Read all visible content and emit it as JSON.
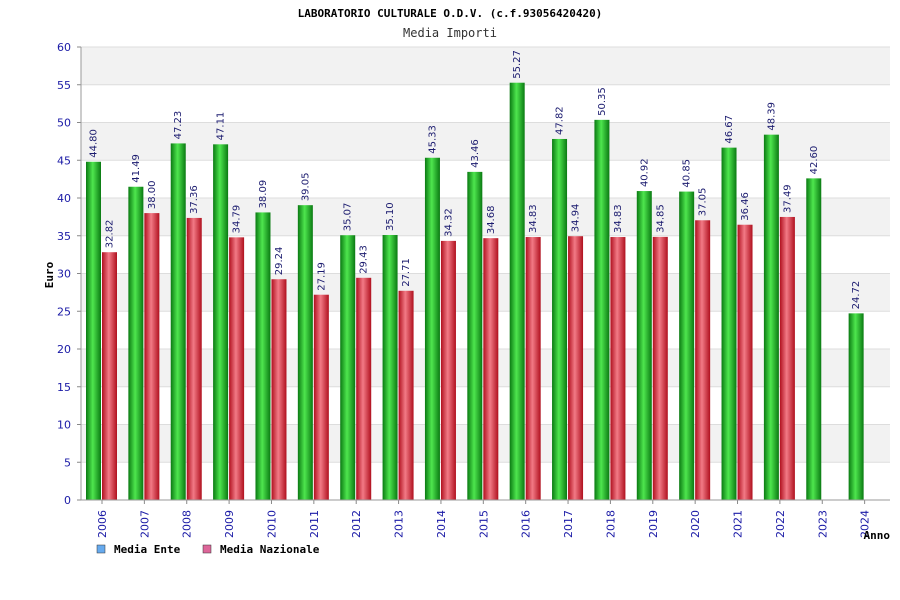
{
  "chart_data": {
    "type": "bar",
    "title": "LABORATORIO CULTURALE O.D.V. (c.f.93056420420)",
    "subtitle": "Media Importi",
    "ylabel": "Euro",
    "xlabel": "Anno",
    "ylim": [
      0,
      60
    ],
    "yticks": [
      "0",
      "5",
      "10",
      "15",
      "20",
      "25",
      "30",
      "35",
      "40",
      "45",
      "50",
      "55",
      "60"
    ],
    "grid": "horizontal, alternating bands",
    "legend_position": "bottom-left",
    "categories": [
      "2006",
      "2007",
      "2008",
      "2009",
      "2010",
      "2011",
      "2012",
      "2013",
      "2014",
      "2015",
      "2016",
      "2017",
      "2018",
      "2019",
      "2020",
      "2021",
      "2022",
      "2023",
      "2024"
    ],
    "series": [
      {
        "name": "Media Ente",
        "legend_color": "#66aaee",
        "bar_color": "#11aa22",
        "values": [
          44.8,
          41.49,
          47.23,
          47.11,
          38.09,
          39.05,
          35.07,
          35.1,
          45.33,
          43.46,
          55.27,
          47.82,
          50.35,
          40.92,
          40.85,
          46.67,
          48.39,
          42.6,
          24.72
        ],
        "labels": [
          "44.80",
          "41.49",
          "47.23",
          "47.11",
          "38.09",
          "39.05",
          "35.07",
          "35.10",
          "45.33",
          "43.46",
          "55.27",
          "47.82",
          "50.35",
          "40.92",
          "40.85",
          "46.67",
          "48.39",
          "42.60",
          "24.72"
        ]
      },
      {
        "name": "Media Nazionale",
        "legend_color": "#dd6699",
        "bar_color": "#dd2233",
        "values": [
          32.82,
          38.0,
          37.36,
          34.79,
          29.24,
          27.19,
          29.43,
          27.71,
          34.32,
          34.68,
          34.83,
          34.94,
          34.83,
          34.85,
          37.05,
          36.46,
          37.49,
          null,
          null
        ],
        "labels": [
          "32.82",
          "38.00",
          "37.36",
          "34.79",
          "29.24",
          "27.19",
          "29.43",
          "27.71",
          "34.32",
          "34.68",
          "34.83",
          "34.94",
          "34.83",
          "34.85",
          "37.05",
          "36.46",
          "37.49",
          "",
          ""
        ]
      }
    ]
  }
}
